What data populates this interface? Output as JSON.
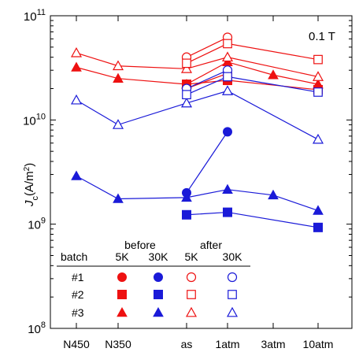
{
  "chart_data": {
    "type": "scatter",
    "field_label": "0.1 T",
    "ylabel_main": "J",
    "ylabel_sub": "c",
    "ylabel_unit_pre": "(A/m",
    "ylabel_unit_sup": "2",
    "ylabel_unit_post": ")",
    "y_scale": "log",
    "ylim": [
      100000000,
      100000000000
    ],
    "y_ticks": [
      {
        "value": 100000000,
        "base": "10",
        "exp": "8"
      },
      {
        "value": 1000000000,
        "base": "10",
        "exp": "9"
      },
      {
        "value": 10000000000,
        "base": "10",
        "exp": "10"
      },
      {
        "value": 100000000000,
        "base": "10",
        "exp": "11"
      }
    ],
    "categories": [
      "N450",
      "N350",
      "as",
      "1atm",
      "3atm",
      "10atm"
    ],
    "colors": {
      "red": "#ee1111",
      "blue": "#1a1ad8"
    },
    "legend": {
      "header_before": "before",
      "header_after": "after",
      "header_batch": "batch",
      "col_5k_before": "5K",
      "col_30k_before": "30K",
      "col_5k_after": "5K",
      "col_30k_after": "30K",
      "rows": [
        {
          "label": "#1",
          "marker": "circle"
        },
        {
          "label": "#2",
          "marker": "square"
        },
        {
          "label": "#3",
          "marker": "triangle"
        }
      ]
    },
    "series": [
      {
        "batch": "#3",
        "temperature": "5K",
        "state": "before",
        "marker": "triangle",
        "filled": true,
        "color": "red",
        "points": [
          {
            "x": "N450",
            "y": 32000000000
          },
          {
            "x": "N350",
            "y": 25000000000
          },
          {
            "x": "as",
            "y": 22000000000
          },
          {
            "x": "1atm",
            "y": 36000000000
          },
          {
            "x": "3atm",
            "y": 27000000000
          },
          {
            "x": "10atm",
            "y": 22000000000
          }
        ]
      },
      {
        "batch": "#3",
        "temperature": "5K",
        "state": "after",
        "marker": "triangle",
        "filled": false,
        "color": "red",
        "points": [
          {
            "x": "N450",
            "y": 44000000000
          },
          {
            "x": "N350",
            "y": 33000000000
          },
          {
            "x": "as",
            "y": 31000000000
          },
          {
            "x": "1atm",
            "y": 40000000000
          },
          {
            "x": "10atm",
            "y": 26000000000
          }
        ]
      },
      {
        "batch": "#1",
        "temperature": "5K",
        "state": "before",
        "marker": "circle",
        "filled": true,
        "color": "red",
        "points": [
          {
            "x": "as",
            "y": 20000000000
          },
          {
            "x": "1atm",
            "y": 28000000000
          }
        ]
      },
      {
        "batch": "#1",
        "temperature": "5K",
        "state": "after",
        "marker": "circle",
        "filled": false,
        "color": "red",
        "points": [
          {
            "x": "as",
            "y": 40000000000
          },
          {
            "x": "1atm",
            "y": 62000000000
          }
        ]
      },
      {
        "batch": "#2",
        "temperature": "5K",
        "state": "before",
        "marker": "square",
        "filled": true,
        "color": "red",
        "points": [
          {
            "x": "as",
            "y": 22000000000
          },
          {
            "x": "1atm",
            "y": 24000000000
          },
          {
            "x": "10atm",
            "y": 19500000000
          }
        ]
      },
      {
        "batch": "#2",
        "temperature": "5K",
        "state": "after",
        "marker": "square",
        "filled": false,
        "color": "red",
        "points": [
          {
            "x": "as",
            "y": 35000000000
          },
          {
            "x": "1atm",
            "y": 54000000000
          },
          {
            "x": "10atm",
            "y": 38000000000
          }
        ]
      },
      {
        "batch": "#3",
        "temperature": "30K",
        "state": "after",
        "marker": "triangle",
        "filled": false,
        "color": "blue",
        "points": [
          {
            "x": "N450",
            "y": 15500000000
          },
          {
            "x": "N350",
            "y": 9000000000
          },
          {
            "x": "as",
            "y": 14500000000
          },
          {
            "x": "1atm",
            "y": 19000000000
          },
          {
            "x": "10atm",
            "y": 6500000000
          }
        ]
      },
      {
        "batch": "#1",
        "temperature": "30K",
        "state": "after",
        "marker": "circle",
        "filled": false,
        "color": "blue",
        "points": [
          {
            "x": "as",
            "y": 20000000000
          },
          {
            "x": "1atm",
            "y": 30000000000
          }
        ]
      },
      {
        "batch": "#2",
        "temperature": "30K",
        "state": "after",
        "marker": "square",
        "filled": false,
        "color": "blue",
        "points": [
          {
            "x": "as",
            "y": 17500000000
          },
          {
            "x": "1atm",
            "y": 26000000000
          },
          {
            "x": "10atm",
            "y": 18500000000
          }
        ]
      },
      {
        "batch": "#1",
        "temperature": "30K",
        "state": "before",
        "marker": "circle",
        "filled": true,
        "color": "blue",
        "points": [
          {
            "x": "as",
            "y": 2000000000
          },
          {
            "x": "1atm",
            "y": 7700000000
          }
        ]
      },
      {
        "batch": "#3",
        "temperature": "30K",
        "state": "before",
        "marker": "triangle",
        "filled": true,
        "color": "blue",
        "points": [
          {
            "x": "N450",
            "y": 2900000000
          },
          {
            "x": "N350",
            "y": 1750000000
          },
          {
            "x": "as",
            "y": 1800000000
          },
          {
            "x": "1atm",
            "y": 2150000000
          },
          {
            "x": "3atm",
            "y": 1900000000
          },
          {
            "x": "10atm",
            "y": 1350000000
          }
        ]
      },
      {
        "batch": "#2",
        "temperature": "30K",
        "state": "before",
        "marker": "square",
        "filled": true,
        "color": "blue",
        "points": [
          {
            "x": "as",
            "y": 1230000000
          },
          {
            "x": "1atm",
            "y": 1300000000
          },
          {
            "x": "10atm",
            "y": 930000000
          }
        ]
      }
    ]
  }
}
